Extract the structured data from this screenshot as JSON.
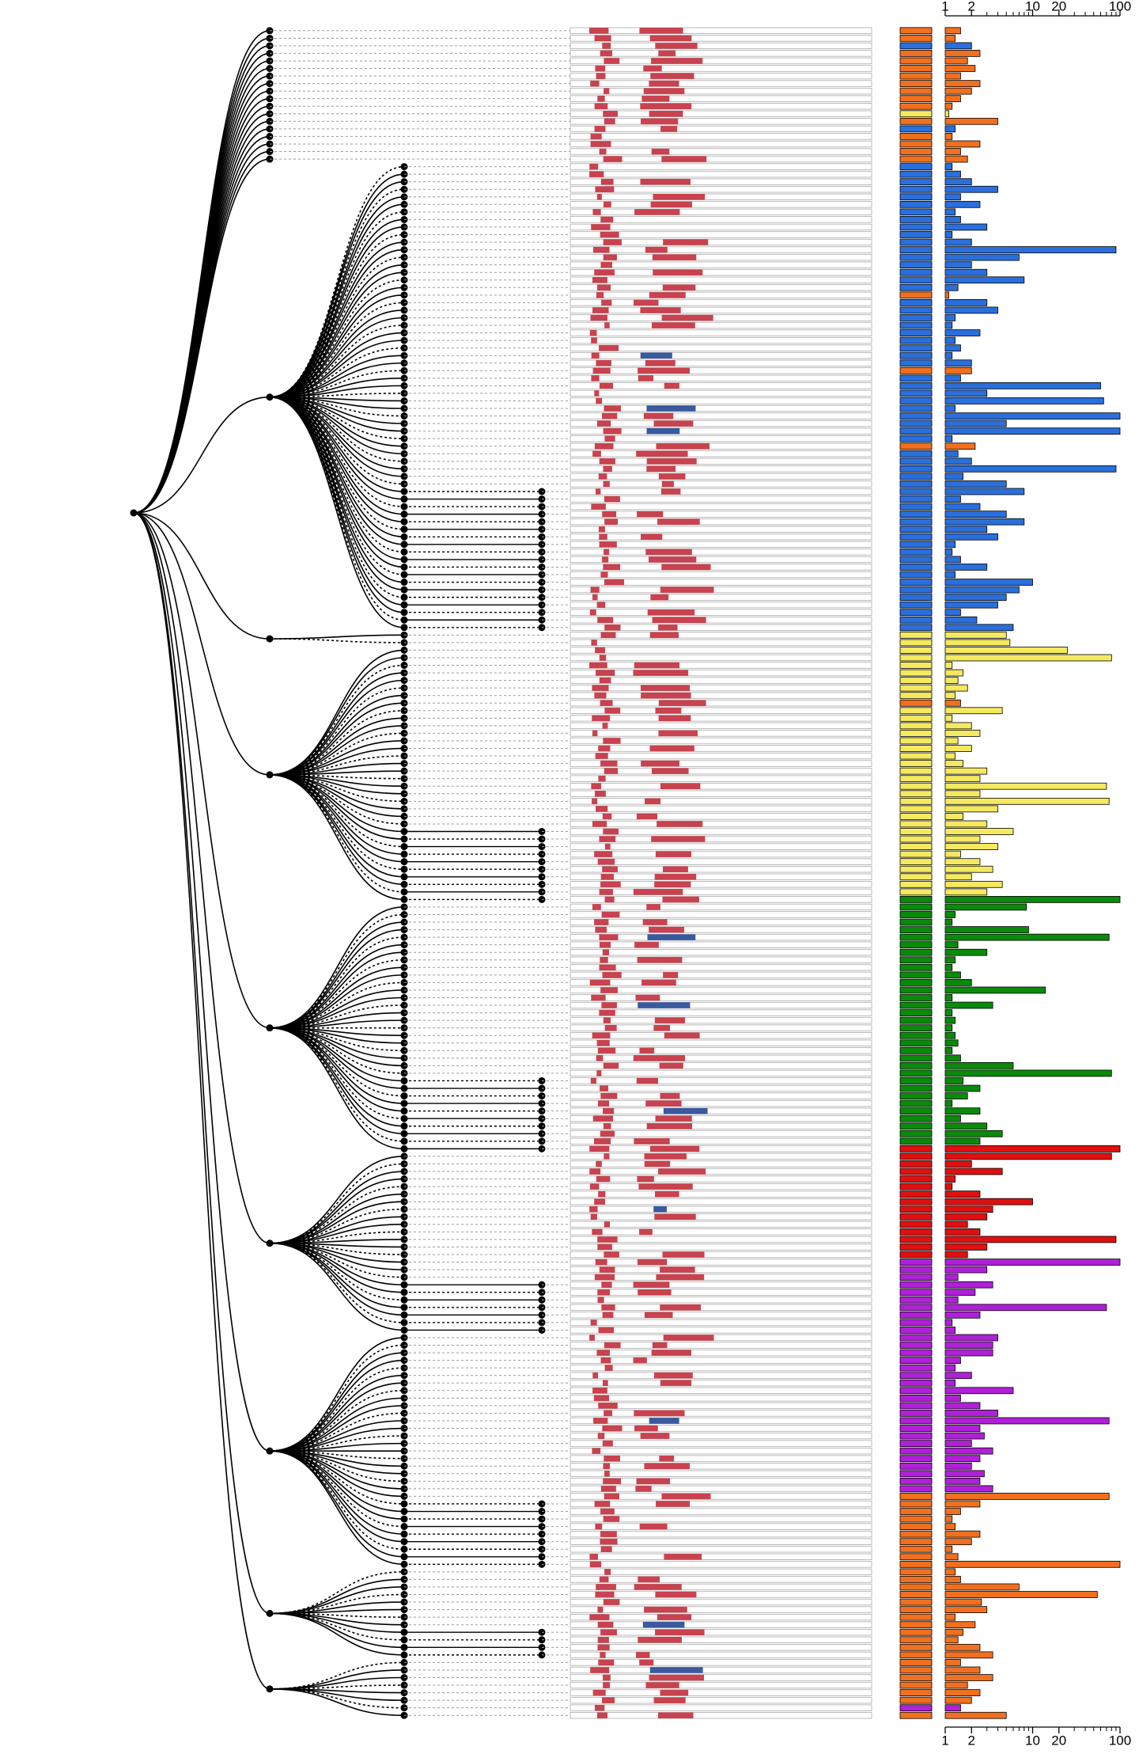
{
  "chart_data": {
    "type": "hbar-log",
    "log_scale": true,
    "xlim": [
      1,
      100
    ],
    "xticks": [
      1,
      2,
      10,
      20,
      100
    ],
    "xminor_ticks": [
      3,
      4,
      5,
      6,
      7,
      8,
      9,
      30,
      40,
      50,
      60,
      70,
      80,
      90
    ],
    "groups": [
      {
        "color": "#f07020",
        "values": [
          1.5,
          1.3
        ]
      },
      {
        "color": "#2a6fdb",
        "values": [
          2
        ]
      },
      {
        "color": "#f07020",
        "values": [
          2.5,
          1.8,
          2.2,
          1.5,
          2.5,
          2,
          1.5,
          1.2
        ]
      },
      {
        "color": "#f5e960",
        "values": [
          1.1
        ]
      },
      {
        "color": "#f07020",
        "values": [
          4
        ]
      },
      {
        "color": "#2a6fdb",
        "values": [
          1.3
        ]
      },
      {
        "color": "#f07020",
        "values": [
          1.2,
          2.5,
          1.5,
          1.8
        ]
      },
      {
        "color": "#2a6fdb",
        "values": [
          1.2,
          1.5,
          2,
          4,
          1.5,
          2.5,
          1.3,
          1.5,
          3,
          1.2,
          2,
          90,
          7,
          2,
          3,
          8,
          1.4
        ]
      },
      {
        "color": "#f07020",
        "values": [
          1.1
        ]
      },
      {
        "color": "#2a6fdb",
        "values": [
          3,
          4,
          1.3,
          1.2,
          2.5,
          1.3,
          1.5,
          1.2,
          2
        ]
      },
      {
        "color": "#f07020",
        "values": [
          2
        ]
      },
      {
        "color": "#2a6fdb",
        "values": [
          1.5,
          60,
          3,
          65,
          1.3,
          100,
          5,
          100,
          1.2
        ]
      },
      {
        "color": "#f07020",
        "values": [
          2.2
        ]
      },
      {
        "color": "#2a6fdb",
        "values": [
          1.4,
          2,
          90,
          1.6,
          5,
          8,
          1.5,
          2.5,
          5,
          8,
          3,
          4,
          1.3,
          1.2,
          1.5,
          3,
          1.3,
          10,
          7,
          5,
          4,
          1.5,
          2.3,
          6
        ]
      },
      {
        "color": "#f5e960",
        "values": [
          5,
          5.5,
          25,
          80,
          1.2,
          1.6,
          1.4,
          1.8,
          1.3
        ]
      },
      {
        "color": "#f07020",
        "values": [
          1.5
        ]
      },
      {
        "color": "#f5e960",
        "values": [
          4.5,
          1.2,
          2,
          2.5,
          1.4,
          2,
          1.3,
          1.6,
          3,
          2.5,
          70,
          2.5,
          75,
          4,
          1.6,
          3,
          6,
          2.5,
          4,
          1.5,
          2.5,
          3.5,
          2,
          4.5,
          3
        ]
      },
      {
        "color": "#0a8a0a",
        "values": [
          100,
          8.5,
          1.3,
          1.2,
          9,
          75,
          1.4,
          3,
          1.3,
          1.2,
          1.5,
          2,
          14,
          1.2,
          3.5,
          1.2,
          1.3,
          1.2,
          1.3,
          1.4,
          1.2,
          1.5,
          6,
          80,
          1.6,
          2.5,
          1.8,
          1.2,
          2.5,
          1.5,
          3,
          4.5,
          2.5
        ]
      },
      {
        "color": "#e01010",
        "values": [
          100,
          80,
          2,
          4.5,
          1.3,
          1.2,
          2.5,
          10,
          3.5,
          3,
          1.8,
          2.5,
          90,
          3,
          1.8
        ]
      },
      {
        "color": "#b020d8",
        "values": [
          100,
          3,
          1.4,
          3.5,
          2.2,
          1.4,
          70,
          2.5,
          1.2,
          1.3,
          4,
          3.5,
          3.5,
          1.5,
          1.3,
          2,
          1.3,
          6,
          1.5,
          2.5,
          4,
          75,
          2.5,
          2.8,
          2,
          3.5,
          2.5,
          2,
          2.8,
          2.5,
          3.5
        ]
      },
      {
        "color": "#f07020",
        "values": [
          75,
          2.5,
          1.5,
          1.2,
          1.3,
          2.5,
          2,
          1.2,
          1.4,
          100,
          1.3,
          1.5,
          7,
          55,
          2.6,
          3,
          1.3,
          2.2,
          1.6,
          1.4,
          2.5,
          3.5,
          1.5,
          2.5,
          3.5,
          1.8,
          2.5,
          2
        ]
      },
      {
        "color": "#b020d8",
        "values": [
          1.5
        ]
      },
      {
        "color": "#f07020",
        "values": [
          5
        ]
      }
    ]
  }
}
